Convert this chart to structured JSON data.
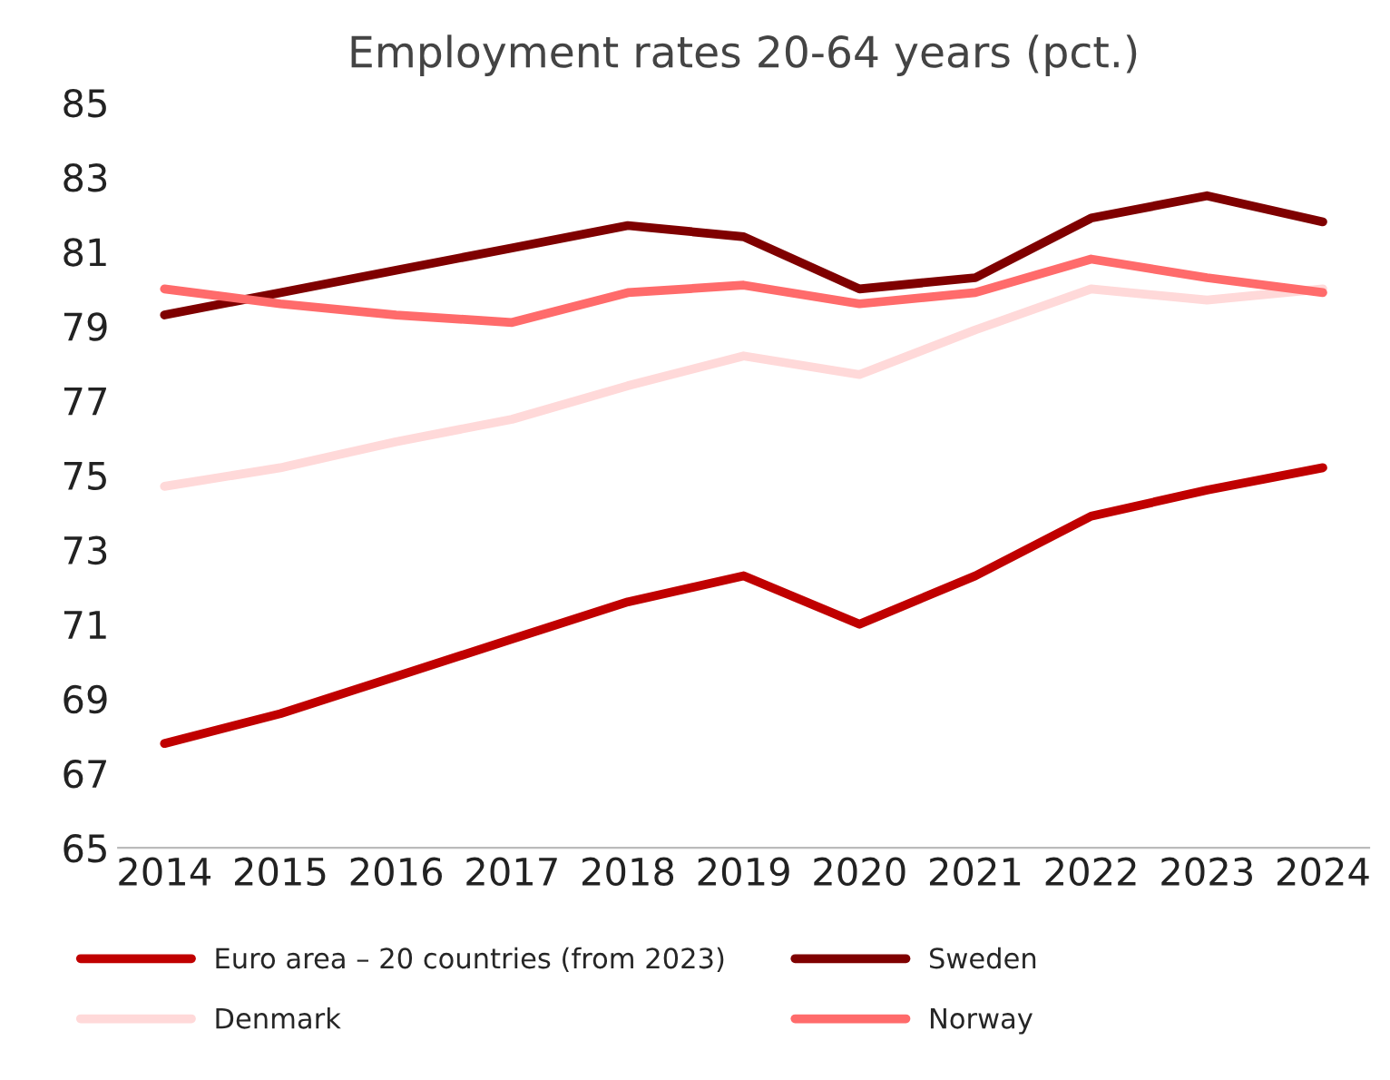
{
  "chart_data": {
    "type": "line",
    "title": "Employment rates 20-64 years (pct.)",
    "categories": [
      "2014",
      "2015",
      "2016",
      "2017",
      "2018",
      "2019",
      "2020",
      "2021",
      "2022",
      "2023",
      "2024"
    ],
    "series": [
      {
        "name": "Euro area – 20 countries (from 2023)",
        "color": "#c00000",
        "values": [
          67.8,
          68.6,
          69.6,
          70.6,
          71.6,
          72.3,
          71.0,
          72.3,
          73.9,
          74.6,
          75.2
        ]
      },
      {
        "name": "Denmark",
        "color": "#ffd9d9",
        "values": [
          74.7,
          75.2,
          75.9,
          76.5,
          77.4,
          78.2,
          77.7,
          78.9,
          80.0,
          79.7,
          80.0
        ]
      },
      {
        "name": "Sweden",
        "color": "#7f0000",
        "values": [
          79.3,
          79.9,
          80.5,
          81.1,
          81.7,
          81.4,
          80.0,
          80.3,
          81.9,
          82.5,
          81.8
        ]
      },
      {
        "name": "Norway",
        "color": "#ff6b6b",
        "values": [
          80.0,
          79.6,
          79.3,
          79.1,
          79.9,
          80.1,
          79.6,
          79.9,
          80.8,
          80.3,
          79.9
        ]
      }
    ],
    "ylim": [
      65,
      85
    ],
    "yticks": [
      65,
      67,
      69,
      71,
      73,
      75,
      77,
      79,
      81,
      83,
      85
    ],
    "grid": false,
    "legend": "bottom",
    "marker": "none",
    "line_style": "solid"
  }
}
